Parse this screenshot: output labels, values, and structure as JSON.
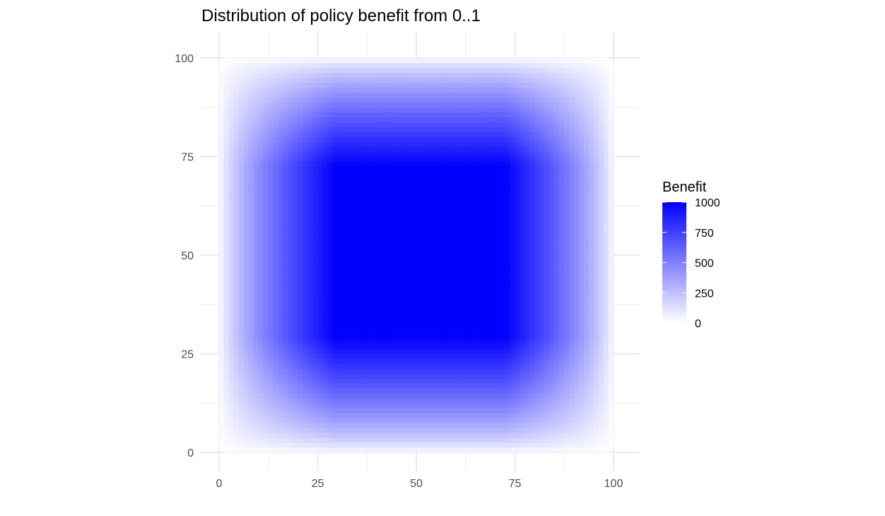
{
  "chart_data": {
    "type": "heatmap",
    "title": "Distribution of policy benefit from 0..1",
    "xlabel": "",
    "ylabel": "",
    "xlim": [
      0,
      100
    ],
    "ylim": [
      0,
      100
    ],
    "x_ticks": [
      0,
      25,
      50,
      75,
      100
    ],
    "y_ticks": [
      0,
      25,
      50,
      75,
      100
    ],
    "x_tick_labels": [
      "0",
      "25",
      "50",
      "75",
      "100"
    ],
    "y_tick_labels": [
      "0",
      "25",
      "50",
      "75",
      "100"
    ],
    "grid": true,
    "fill_scale": {
      "name": "Benefit",
      "min": 0,
      "max": 1000,
      "low_color": "#ffffff",
      "high_color": "#0000ff",
      "breaks": [
        0,
        250,
        500,
        750,
        1000
      ],
      "labels": [
        "0",
        "250",
        "500",
        "750",
        "1000"
      ]
    },
    "legend_position": "right",
    "surface": {
      "description_of_values": "Benefit is 1000 for x and y between about 29.5 and 72.5, and falls off to 0 toward the edges at 0 and 100.",
      "plateau_x": [
        29.5,
        72.5
      ],
      "plateau_y": [
        29.5,
        72.5
      ],
      "support": [
        0,
        100
      ],
      "peak_value": 1000
    }
  }
}
